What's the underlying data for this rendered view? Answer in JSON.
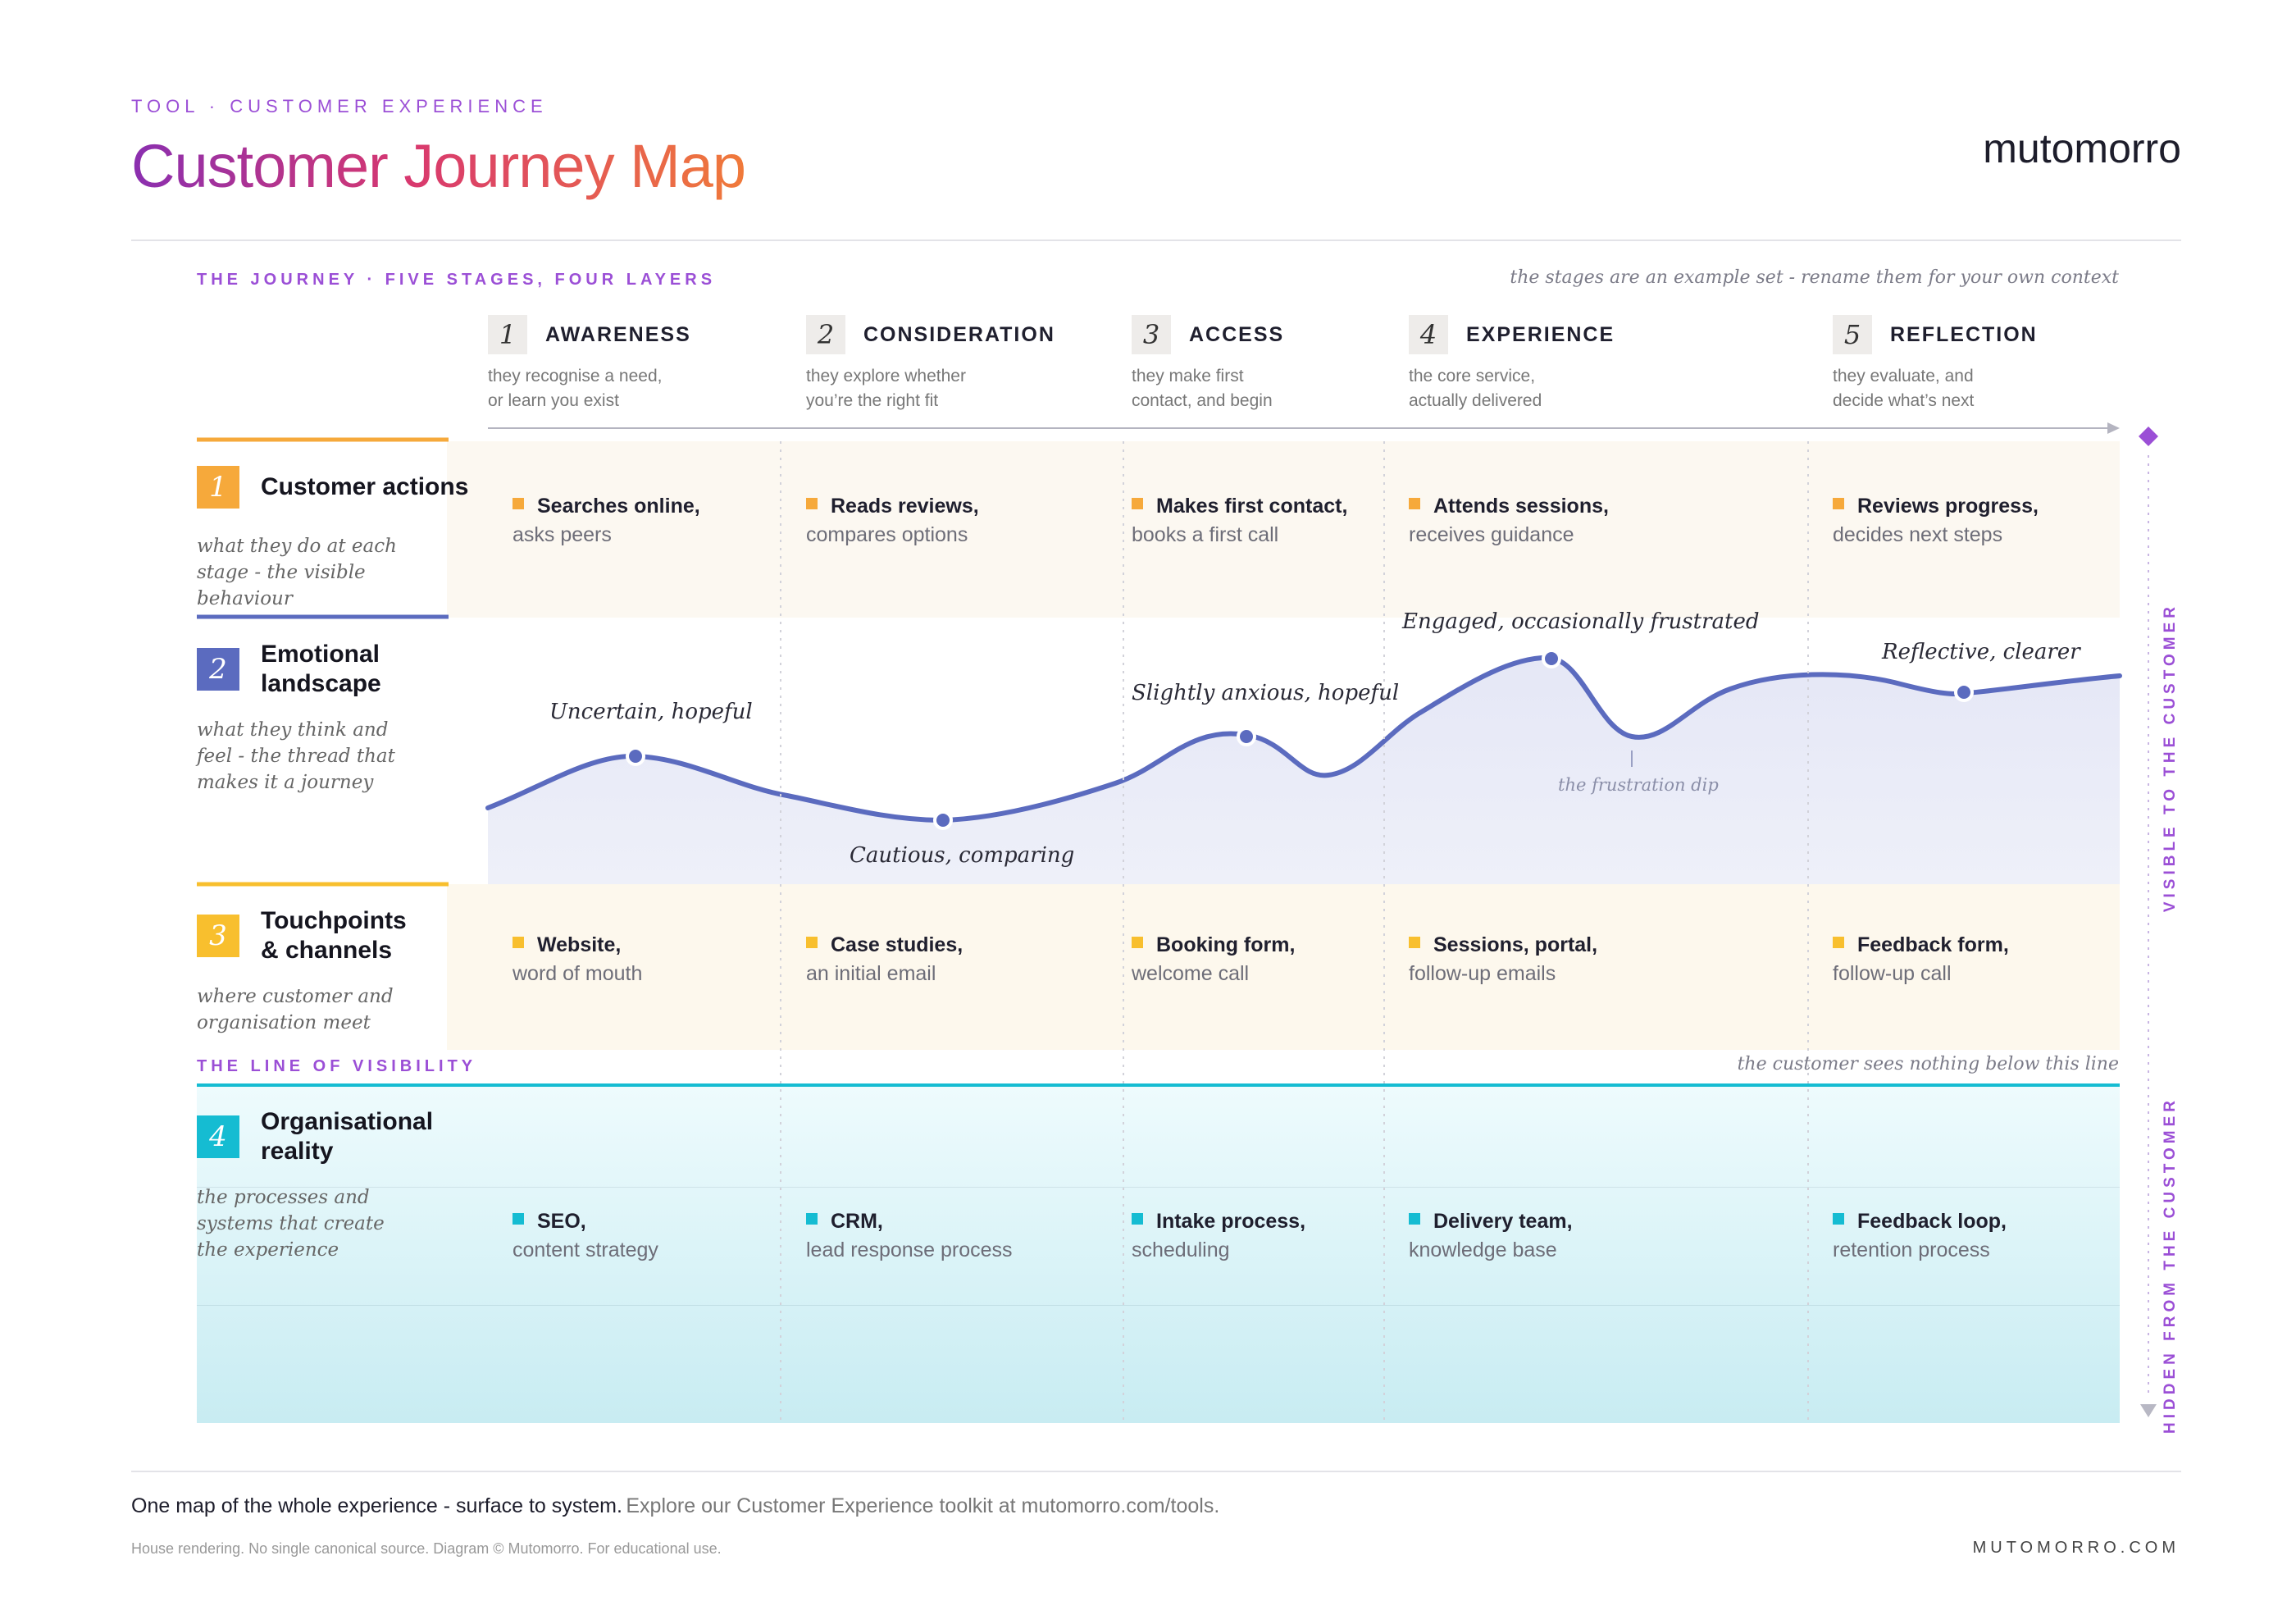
{
  "header": {
    "kicker": "TOOL · CUSTOMER EXPERIENCE",
    "title": "Customer Journey Map",
    "brand": "mutomorro"
  },
  "journey": {
    "section_label": "THE JOURNEY · FIVE STAGES, FOUR LAYERS",
    "note": "the stages are an example set - rename them for your own context",
    "stages": [
      {
        "num": "1",
        "name": "AWARENESS",
        "desc1": "they recognise a need,",
        "desc2": "or learn you exist"
      },
      {
        "num": "2",
        "name": "CONSIDERATION",
        "desc1": "they explore whether",
        "desc2": "you’re the right fit"
      },
      {
        "num": "3",
        "name": "ACCESS",
        "desc1": "they make first",
        "desc2": "contact, and begin"
      },
      {
        "num": "4",
        "name": "EXPERIENCE",
        "desc1": "the core service,",
        "desc2": "actually delivered"
      },
      {
        "num": "5",
        "name": "REFLECTION",
        "desc1": "they evaluate, and",
        "desc2": "decide what’s next"
      }
    ]
  },
  "layers": [
    {
      "num": "1",
      "title1": "Customer actions",
      "title2": "",
      "desc": [
        "what they do at each",
        "stage - the visible",
        "behaviour"
      ],
      "color": "#f6a93b"
    },
    {
      "num": "2",
      "title1": "Emotional",
      "title2": "landscape",
      "desc": [
        "what they think and",
        "feel - the thread that",
        "makes it a journey"
      ],
      "color": "#5b6bbf"
    },
    {
      "num": "3",
      "title1": "Touchpoints",
      "title2": "& channels",
      "desc": [
        "where customer and",
        "organisation meet"
      ],
      "color": "#f8bf2e"
    },
    {
      "num": "4",
      "title1": "Organisational",
      "title2": "reality",
      "desc": [
        "the processes and",
        "systems that create",
        "the experience"
      ],
      "color": "#15bcd2"
    }
  ],
  "actions": [
    {
      "bold": "Searches online,",
      "sub": "asks peers"
    },
    {
      "bold": "Reads reviews,",
      "sub": "compares options"
    },
    {
      "bold": "Makes first contact,",
      "sub": "books a first call"
    },
    {
      "bold": "Attends sessions,",
      "sub": "receives guidance"
    },
    {
      "bold": "Reviews progress,",
      "sub": "decides next steps"
    }
  ],
  "emotions": {
    "labels": [
      "Uncertain, hopeful",
      "Cautious, comparing",
      "Slightly anxious, hopeful",
      "Engaged, occasionally frustrated",
      "Reflective, clearer"
    ],
    "dip_label": "the frustration dip"
  },
  "touchpoints": [
    {
      "bold": "Website,",
      "sub": "word of mouth"
    },
    {
      "bold": "Case studies,",
      "sub": "an initial email"
    },
    {
      "bold": "Booking form,",
      "sub": "welcome call"
    },
    {
      "bold": "Sessions, portal,",
      "sub": "follow-up emails"
    },
    {
      "bold": "Feedback form,",
      "sub": "follow-up call"
    }
  ],
  "visibility": {
    "label": "THE LINE OF VISIBILITY",
    "note": "the customer sees nothing below this line",
    "visible": "VISIBLE TO THE CUSTOMER",
    "hidden": "HIDDEN FROM THE CUSTOMER"
  },
  "org": [
    {
      "bold": "SEO,",
      "sub": "content strategy"
    },
    {
      "bold": "CRM,",
      "sub": "lead response process"
    },
    {
      "bold": "Intake process,",
      "sub": "scheduling"
    },
    {
      "bold": "Delivery team,",
      "sub": "knowledge base"
    },
    {
      "bold": "Feedback loop,",
      "sub": "retention process"
    }
  ],
  "footer": {
    "bold": "One map of the whole experience - surface to system.",
    "light": "Explore our Customer Experience toolkit at mutomorro.com/tools.",
    "small": "House rendering. No single canonical source. Diagram © Mutomorro. For educational use.",
    "url": "MUTOMORRO.COM"
  },
  "colors": {
    "accent": "#9b4fd6",
    "actions": "#f6a93b",
    "emotion": "#5b6bbf",
    "touch": "#f8bf2e",
    "org": "#15bcd2"
  }
}
